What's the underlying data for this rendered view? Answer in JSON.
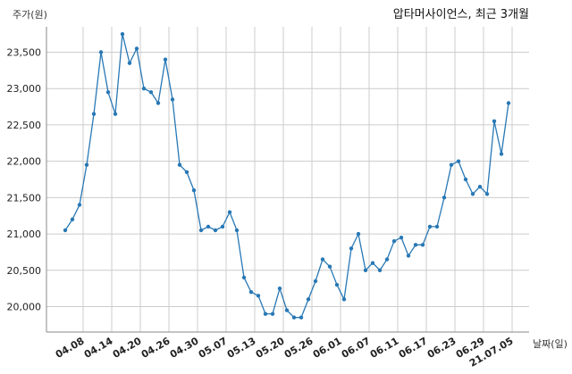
{
  "chart_data": {
    "type": "line",
    "title": "압타머사이언스, 최근 3개월",
    "xlabel": "날짜(일)",
    "ylabel": "주가(원)",
    "ylim": [
      19650,
      23850
    ],
    "y_ticks": [
      20000,
      20500,
      21000,
      21500,
      22000,
      22500,
      23000,
      23500
    ],
    "y_tick_labels": [
      "20,000",
      "20,500",
      "21,000",
      "21,500",
      "22,000",
      "22,500",
      "23,000",
      "23,500"
    ],
    "x_tick_labels": [
      "04.08",
      "04.14",
      "04.20",
      "04.26",
      "04.30",
      "05.07",
      "05.13",
      "05.20",
      "05.26",
      "06.01",
      "06.07",
      "06.11",
      "06.17",
      "06.23",
      "06.29",
      "21.07.05"
    ],
    "x_tick_index": [
      2.5,
      6.5,
      10.5,
      14.5,
      18.5,
      22.5,
      26.5,
      30.5,
      34.5,
      38.5,
      42.5,
      46.5,
      50.5,
      54.5,
      58.5,
      62.5
    ],
    "grid": true,
    "legend": "none",
    "colors": {
      "line": "#2878b5",
      "grid": "#cccccc",
      "axis": "#888888"
    },
    "series": [
      {
        "values": [
          21050,
          21200,
          21400,
          21950,
          22650,
          23500,
          22950,
          22650,
          23750,
          23350,
          23550,
          23000,
          22950,
          22800,
          23400,
          22850,
          21950,
          21850,
          21600,
          21050,
          21100,
          21050,
          21100,
          21300,
          21050,
          20400,
          20200,
          20150,
          19900,
          19900,
          20250,
          19950,
          19850,
          19850,
          20100,
          20350,
          20650,
          20550,
          20300,
          20100,
          20800,
          21000,
          20500,
          20600,
          20500,
          20650,
          20900,
          20950,
          20700,
          20850,
          20850,
          21100,
          21100,
          21500,
          21950,
          22000,
          21750,
          21550,
          21650,
          21550,
          22550,
          22100,
          22800
        ]
      }
    ]
  }
}
